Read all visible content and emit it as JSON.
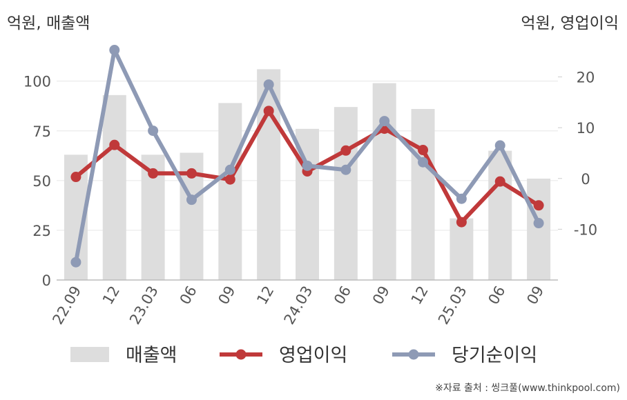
{
  "chart_data": {
    "type": "bar+line",
    "categories": [
      "22.09",
      "12",
      "23.03",
      "06",
      "09",
      "12",
      "24.03",
      "06",
      "09",
      "12",
      "25.03",
      "06",
      "09"
    ],
    "left_axis": {
      "unit_label": "억원, 매출액",
      "ylim": [
        0,
        120
      ],
      "ticks": [
        0,
        25,
        50,
        75,
        100
      ]
    },
    "right_axis": {
      "unit_label": "억원, 영업이익",
      "ylim": [
        -20,
        27
      ],
      "ticks": [
        -10,
        0,
        10,
        20
      ]
    },
    "series": [
      {
        "name": "매출액",
        "kind": "bar",
        "axis": "left",
        "color": "#dddddd",
        "values": [
          63,
          93,
          63,
          64,
          89,
          106,
          76,
          87,
          99,
          86,
          31,
          65,
          51
        ]
      },
      {
        "name": "영업이익",
        "kind": "line",
        "axis": "right",
        "color": "#c0393a",
        "values": [
          0.3,
          6.6,
          1,
          1,
          -0.2,
          13.3,
          1.4,
          5.5,
          9.8,
          5.6,
          -8.6,
          -0.6,
          -5.3
        ]
      },
      {
        "name": "당기순이익",
        "kind": "line",
        "axis": "right",
        "color": "#8e9ab5",
        "values": [
          -16.5,
          25.3,
          9.4,
          -4.2,
          1.7,
          18.5,
          2.5,
          1.7,
          11.3,
          3.2,
          -4,
          6.5,
          -8.8
        ]
      }
    ],
    "grid": true,
    "legend": "bottom"
  },
  "source": "※자료 출처 : 씽크풀(www.thinkpool.com)"
}
